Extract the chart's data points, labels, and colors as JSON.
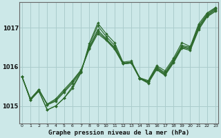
{
  "xlabel": "Graphe pression niveau de la mer (hPa)",
  "bg_color": "#cce8e8",
  "grid_color": "#aacccc",
  "line_color": "#2d6a2d",
  "ylim": [
    1014.55,
    1017.65
  ],
  "xlim": [
    -0.3,
    23.3
  ],
  "yticks": [
    1015,
    1016,
    1017
  ],
  "xticks": [
    0,
    1,
    2,
    3,
    4,
    5,
    6,
    7,
    8,
    9,
    10,
    11,
    12,
    13,
    14,
    15,
    16,
    17,
    18,
    19,
    20,
    21,
    22,
    23
  ],
  "series": [
    [
      1015.75,
      1015.15,
      1015.38,
      1014.9,
      1015.0,
      1015.2,
      1015.45,
      1015.85,
      1016.6,
      1017.12,
      1016.85,
      1016.62,
      1016.12,
      1016.15,
      1015.72,
      1015.65,
      1016.03,
      1015.9,
      1016.22,
      1016.62,
      1016.52,
      1017.1,
      1017.38,
      1017.52
    ],
    [
      1015.75,
      1015.15,
      1015.38,
      1014.9,
      1015.0,
      1015.2,
      1015.5,
      1015.85,
      1016.55,
      1017.05,
      1016.78,
      1016.55,
      1016.1,
      1016.12,
      1015.72,
      1015.62,
      1016.0,
      1015.85,
      1016.18,
      1016.55,
      1016.5,
      1017.05,
      1017.35,
      1017.5
    ],
    [
      1015.75,
      1015.18,
      1015.42,
      1015.03,
      1015.12,
      1015.35,
      1015.58,
      1015.87,
      1016.5,
      1016.95,
      1016.72,
      1016.5,
      1016.08,
      1016.1,
      1015.7,
      1015.62,
      1015.98,
      1015.82,
      1016.15,
      1016.52,
      1016.48,
      1017.02,
      1017.32,
      1017.48
    ],
    [
      1015.75,
      1015.18,
      1015.42,
      1015.03,
      1015.15,
      1015.38,
      1015.62,
      1015.9,
      1016.48,
      1016.9,
      1016.7,
      1016.48,
      1016.08,
      1016.1,
      1015.7,
      1015.6,
      1015.95,
      1015.8,
      1016.12,
      1016.5,
      1016.45,
      1016.98,
      1017.3,
      1017.45
    ],
    [
      1015.75,
      1015.18,
      1015.42,
      1015.05,
      1015.18,
      1015.42,
      1015.65,
      1015.92,
      1016.45,
      1016.85,
      1016.68,
      1016.45,
      1016.08,
      1016.1,
      1015.7,
      1015.58,
      1015.93,
      1015.78,
      1016.1,
      1016.48,
      1016.42,
      1016.95,
      1017.28,
      1017.42
    ]
  ]
}
